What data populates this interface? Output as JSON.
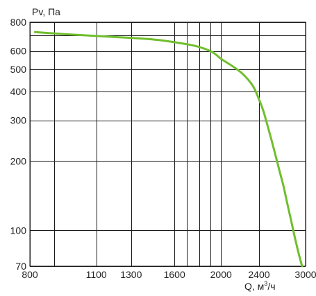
{
  "chart_data": {
    "type": "line",
    "ylabel": "Pv, Па",
    "xlabel_prefix": "Q, м",
    "xlabel_sup": "3",
    "xlabel_suffix": "/ч",
    "x_scale": "log",
    "y_scale": "log",
    "xlim": [
      800,
      3000
    ],
    "ylim": [
      70,
      800
    ],
    "x_ticks": [
      800,
      1100,
      1300,
      1600,
      2000,
      2400,
      3000
    ],
    "x_tick_labels": [
      "800",
      "1100",
      "1300",
      "1600",
      "2000",
      "2400",
      "3000"
    ],
    "x_grid": [
      800,
      900,
      1100,
      1300,
      1600,
      1700,
      1800,
      1900,
      2000,
      2400,
      3000
    ],
    "y_ticks": [
      70,
      100,
      200,
      300,
      400,
      500,
      600,
      800
    ],
    "y_tick_labels": [
      "70",
      "100",
      "200",
      "300",
      "400",
      "500",
      "600",
      "800"
    ],
    "y_grid": [
      70,
      100,
      200,
      300,
      400,
      500,
      600,
      700,
      800
    ],
    "grid": true,
    "series": [
      {
        "color": "#6fbe2c",
        "x": [
          820,
          900,
          1000,
          1100,
          1200,
          1300,
          1400,
          1500,
          1600,
          1700,
          1800,
          1900,
          1950,
          2000,
          2100,
          2200,
          2300,
          2350,
          2400,
          2450,
          2500,
          2550,
          2600,
          2650,
          2700,
          2750,
          2800,
          2850,
          2900,
          2950
        ],
        "y": [
          725,
          715,
          705,
          697,
          690,
          684,
          677,
          668,
          655,
          642,
          625,
          600,
          580,
          555,
          520,
          485,
          440,
          410,
          370,
          330,
          285,
          245,
          210,
          180,
          155,
          130,
          110,
          93,
          80,
          70
        ]
      }
    ]
  }
}
